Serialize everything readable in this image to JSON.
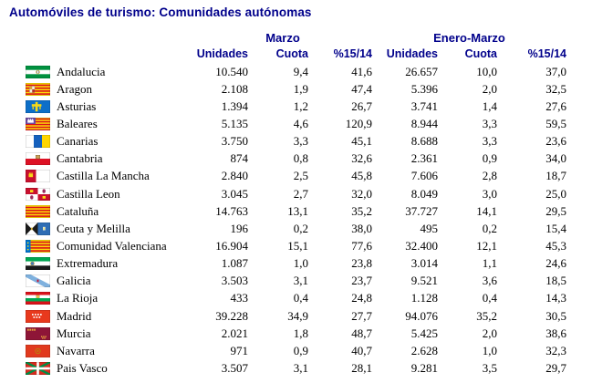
{
  "title": "Automóviles de turismo: Comunidades autónomas",
  "colors": {
    "heading_blue": "#00008B",
    "body_text": "#000000",
    "background": "#FFFFFF"
  },
  "table": {
    "group_headers": [
      "Marzo",
      "Enero-Marzo"
    ],
    "column_headers": [
      "Unidades",
      "Cuota",
      "%15/14",
      "Unidades",
      "Cuota",
      "%15/14"
    ],
    "rows": [
      {
        "flag": "andalucia",
        "name": "Andalucia",
        "values": [
          "10.540",
          "9,4",
          "41,6",
          "26.657",
          "10,0",
          "37,0"
        ]
      },
      {
        "flag": "aragon",
        "name": "Aragon",
        "values": [
          "2.108",
          "1,9",
          "47,4",
          "5.396",
          "2,0",
          "32,5"
        ]
      },
      {
        "flag": "asturias",
        "name": "Asturias",
        "values": [
          "1.394",
          "1,2",
          "26,7",
          "3.741",
          "1,4",
          "27,6"
        ]
      },
      {
        "flag": "baleares",
        "name": "Baleares",
        "values": [
          "5.135",
          "4,6",
          "120,9",
          "8.944",
          "3,3",
          "59,5"
        ]
      },
      {
        "flag": "canarias",
        "name": "Canarias",
        "values": [
          "3.750",
          "3,3",
          "45,1",
          "8.688",
          "3,3",
          "23,6"
        ]
      },
      {
        "flag": "cantabria",
        "name": "Cantabria",
        "values": [
          "874",
          "0,8",
          "32,6",
          "2.361",
          "0,9",
          "34,0"
        ]
      },
      {
        "flag": "castilla-la-mancha",
        "name": "Castilla La Mancha",
        "values": [
          "2.840",
          "2,5",
          "45,8",
          "7.606",
          "2,8",
          "18,7"
        ]
      },
      {
        "flag": "castilla-leon",
        "name": "Castilla Leon",
        "values": [
          "3.045",
          "2,7",
          "32,0",
          "8.049",
          "3,0",
          "25,0"
        ]
      },
      {
        "flag": "cataluna",
        "name": "Cataluña",
        "values": [
          "14.763",
          "13,1",
          "35,2",
          "37.727",
          "14,1",
          "29,5"
        ]
      },
      {
        "flag": "ceuta-melilla",
        "name": "Ceuta y Melilla",
        "values": [
          "196",
          "0,2",
          "38,0",
          "495",
          "0,2",
          "15,4"
        ]
      },
      {
        "flag": "valenciana",
        "name": "Comunidad Valenciana",
        "values": [
          "16.904",
          "15,1",
          "77,6",
          "32.400",
          "12,1",
          "45,3"
        ]
      },
      {
        "flag": "extremadura",
        "name": "Extremadura",
        "values": [
          "1.087",
          "1,0",
          "23,8",
          "3.014",
          "1,1",
          "24,6"
        ]
      },
      {
        "flag": "galicia",
        "name": "Galicia",
        "values": [
          "3.503",
          "3,1",
          "23,7",
          "9.521",
          "3,6",
          "18,5"
        ]
      },
      {
        "flag": "la-rioja",
        "name": "La Rioja",
        "values": [
          "433",
          "0,4",
          "24,8",
          "1.128",
          "0,4",
          "14,3"
        ]
      },
      {
        "flag": "madrid",
        "name": "Madrid",
        "values": [
          "39.228",
          "34,9",
          "27,7",
          "94.076",
          "35,2",
          "30,5"
        ]
      },
      {
        "flag": "murcia",
        "name": "Murcia",
        "values": [
          "2.021",
          "1,8",
          "48,7",
          "5.425",
          "2,0",
          "38,6"
        ]
      },
      {
        "flag": "navarra",
        "name": "Navarra",
        "values": [
          "971",
          "0,9",
          "40,7",
          "2.628",
          "1,0",
          "32,3"
        ]
      },
      {
        "flag": "pais-vasco",
        "name": "Pais Vasco",
        "values": [
          "3.507",
          "3,1",
          "28,1",
          "9.281",
          "3,5",
          "29,7"
        ]
      }
    ]
  }
}
